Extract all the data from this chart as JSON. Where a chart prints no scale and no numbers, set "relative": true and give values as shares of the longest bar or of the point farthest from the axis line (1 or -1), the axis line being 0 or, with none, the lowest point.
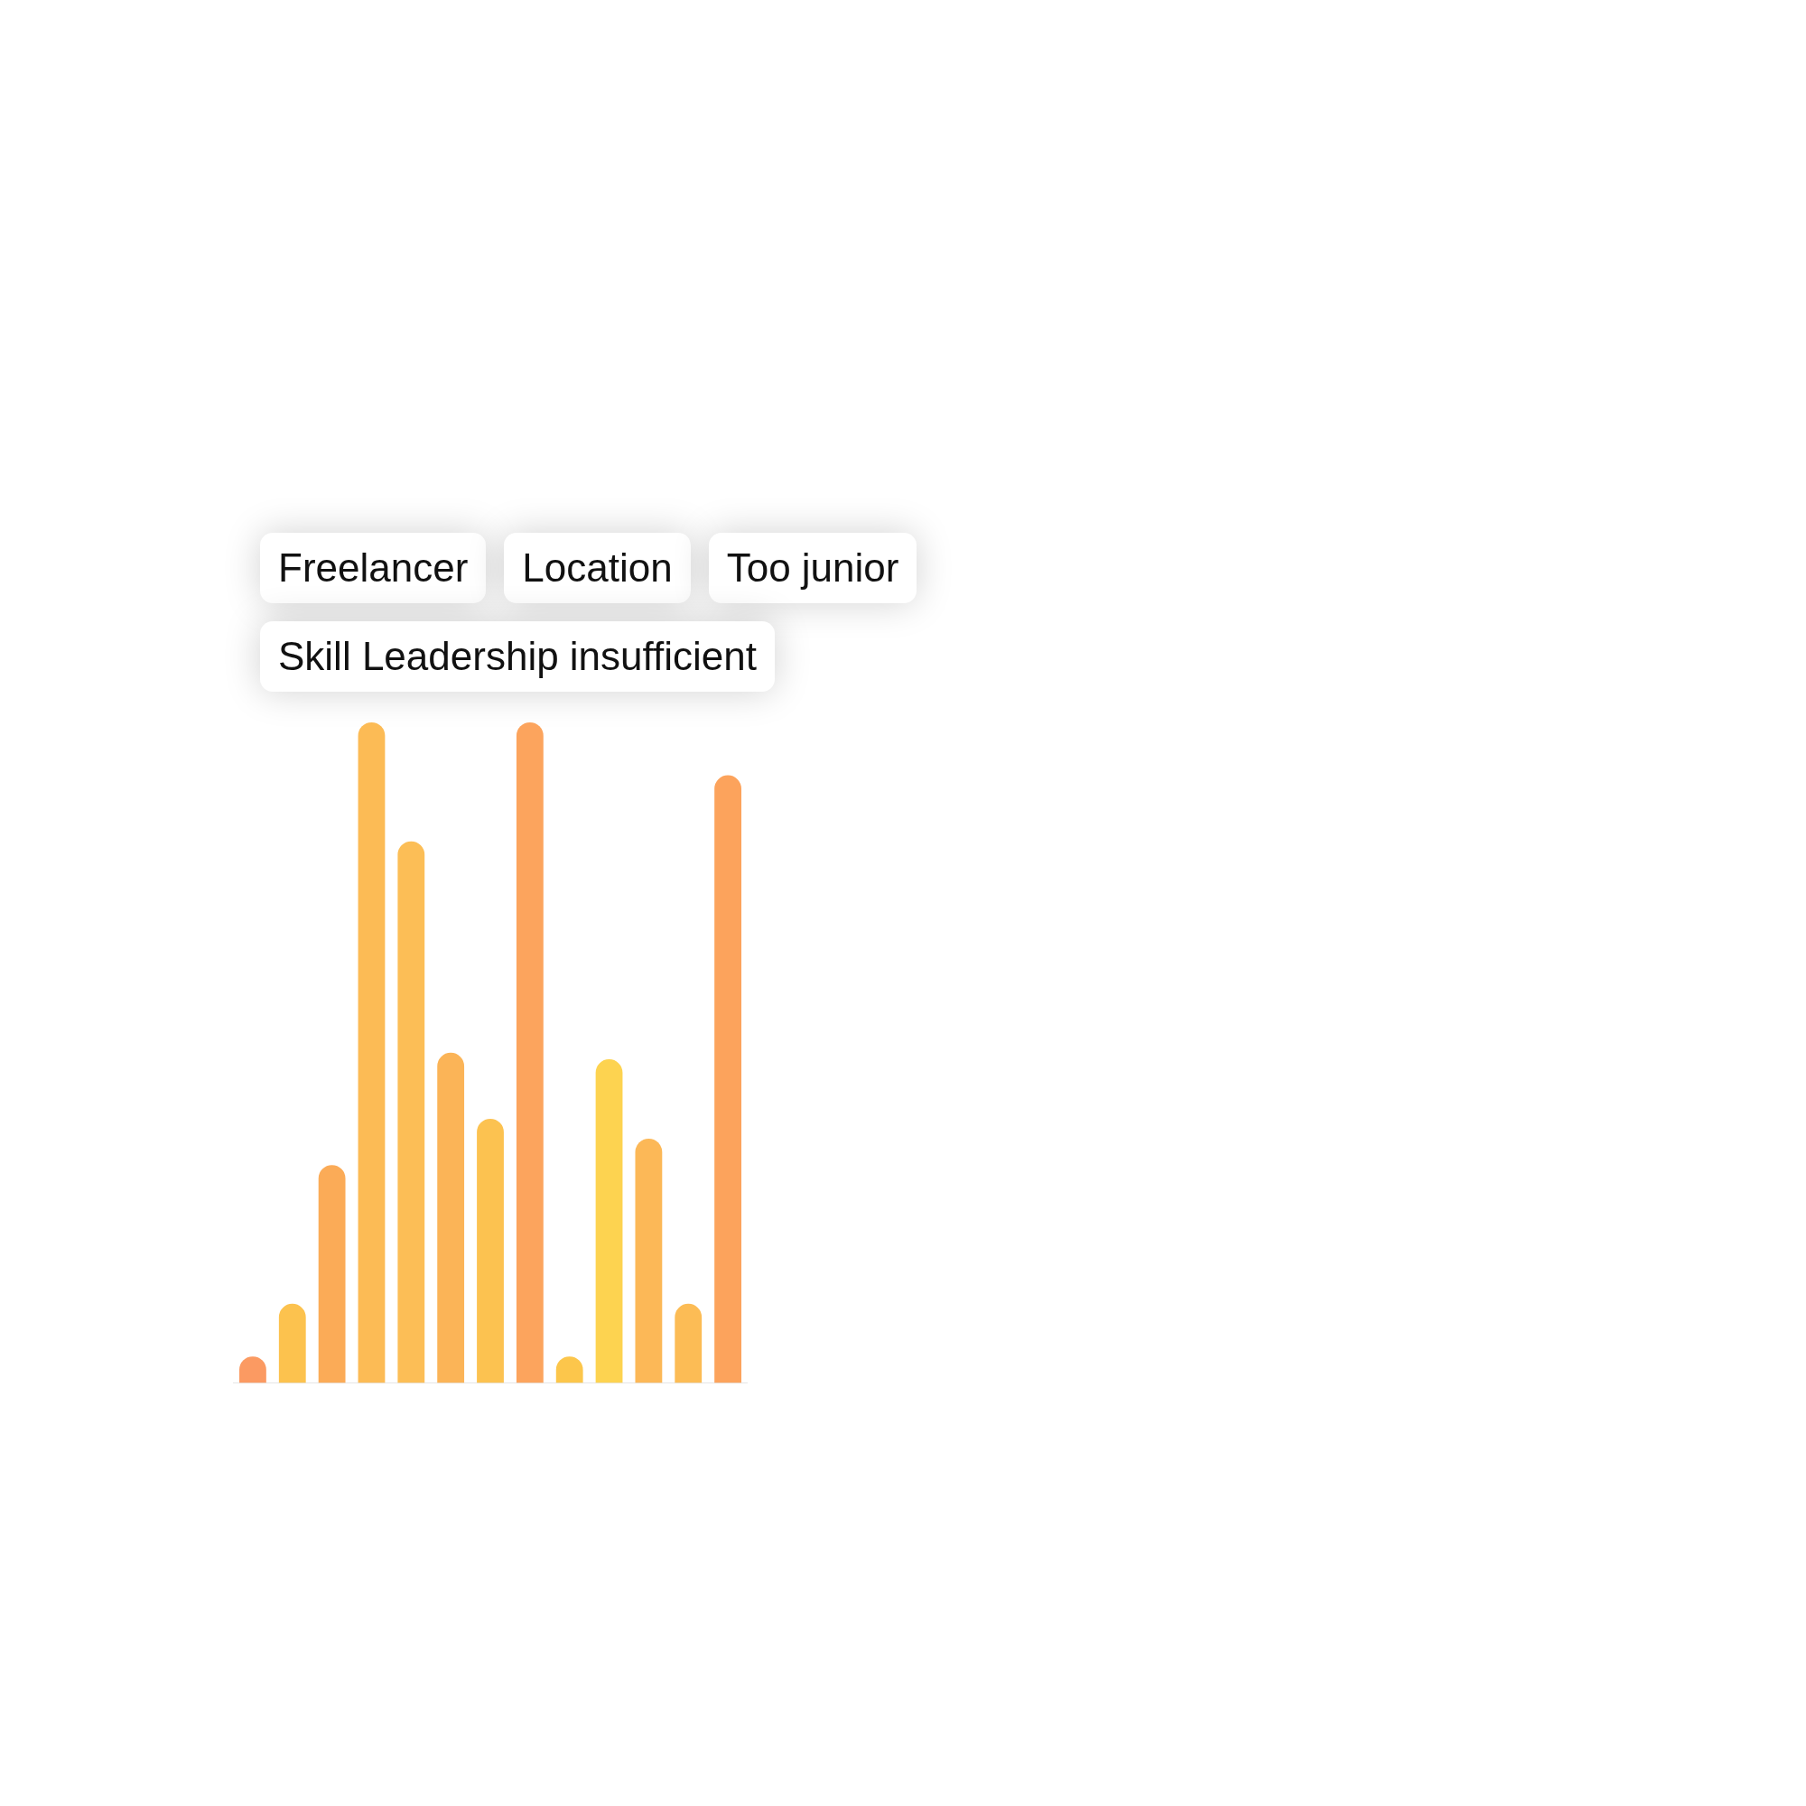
{
  "chart_data": {
    "type": "bar",
    "relative": true,
    "categories": [
      null,
      null,
      null,
      null,
      null,
      null,
      null,
      null,
      null,
      null,
      null,
      null,
      null
    ],
    "values": [
      0.04,
      0.12,
      0.33,
      1,
      0.82,
      0.5,
      0.4,
      1,
      0.04,
      0.49,
      0.37,
      0.12,
      0.92
    ],
    "colors": [
      "#fb9a62",
      "#fcc24e",
      "#fbab57",
      "#fcbb55",
      "#fcbe56",
      "#fbb457",
      "#fcc250",
      "#fca45d",
      "#fcc64b",
      "#fdd350",
      "#fcb857",
      "#fcbc55",
      "#fca35c"
    ],
    "annotations": [
      "Freelancer",
      "Location",
      "Too junior",
      "Skill Leadership insufficient"
    ]
  }
}
